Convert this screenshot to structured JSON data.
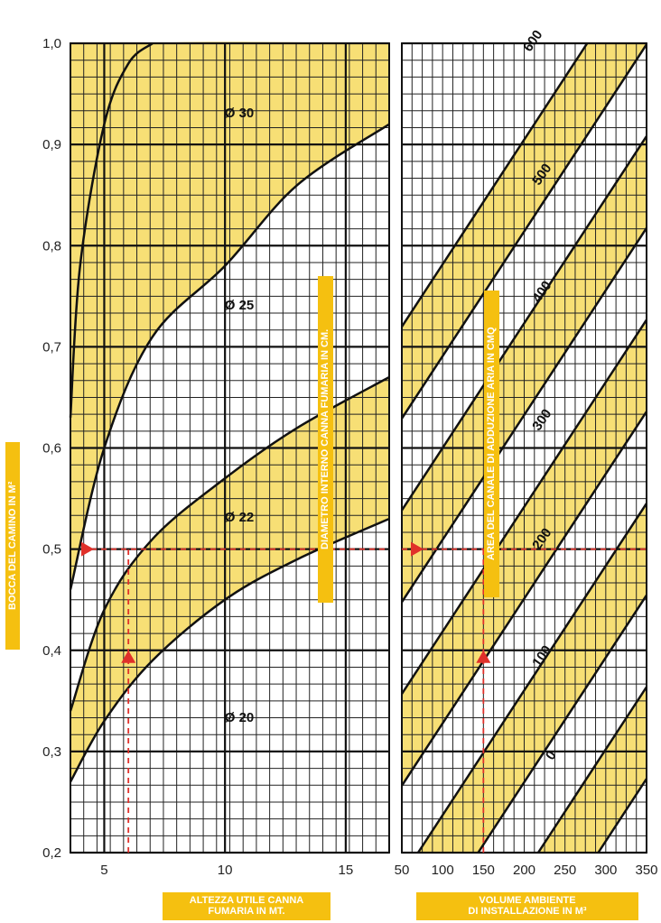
{
  "chart_data": {
    "type": "line",
    "y_axis": {
      "label": "BOCCA DEL CAMINO IN M²",
      "range": [
        0.2,
        1.0
      ],
      "ticks": [
        "0,2",
        "0,3",
        "0,4",
        "0,5",
        "0,6",
        "0,7",
        "0,8",
        "0,9",
        "1,0"
      ]
    },
    "left_panel": {
      "xlabel": "ALTEZZA UTILE CANNA\nFUMARIA IN MT.",
      "x_ticks": [
        "5",
        "10",
        "15"
      ],
      "range": [
        3.6,
        16.8
      ],
      "center_label": "DIAMETRO INTERNO CANNA FUMARIA IN CM.",
      "band_labels": [
        "Ø 30",
        "Ø 25",
        "Ø 22",
        "Ø 20"
      ],
      "curves": [
        {
          "x": [
            3.6,
            4.0,
            5.0,
            6.0,
            7.0
          ],
          "y": [
            0.63,
            0.78,
            0.92,
            0.98,
            1.0
          ]
        },
        {
          "x": [
            3.6,
            5.0,
            7.0,
            10.0,
            13.0,
            16.8
          ],
          "y": [
            0.46,
            0.6,
            0.71,
            0.78,
            0.86,
            0.92
          ]
        },
        {
          "x": [
            3.6,
            5.0,
            7.0,
            10.0,
            13.0,
            16.8
          ],
          "y": [
            0.34,
            0.44,
            0.51,
            0.57,
            0.62,
            0.67
          ]
        },
        {
          "x": [
            3.6,
            5.0,
            7.0,
            10.0,
            13.0,
            16.8
          ],
          "y": [
            0.27,
            0.33,
            0.39,
            0.45,
            0.49,
            0.53
          ]
        }
      ]
    },
    "right_panel": {
      "xlabel": "VOLUME AMBIENTE\nDI INSTALLAZIONE IN M³",
      "x_ticks": [
        "50",
        "100",
        "150",
        "200",
        "250",
        "300",
        "350"
      ],
      "range": [
        50,
        350
      ],
      "center_label": "AREA DEL CANALE DI ADDUZIONE ARIA IN CMQ",
      "diagonal_labels": [
        "0",
        "100",
        "200",
        "300",
        "400",
        "500",
        "600"
      ]
    },
    "example": {
      "altezza_mt": 6,
      "volume_m3": 150,
      "bocca_m2": 0.5
    }
  }
}
